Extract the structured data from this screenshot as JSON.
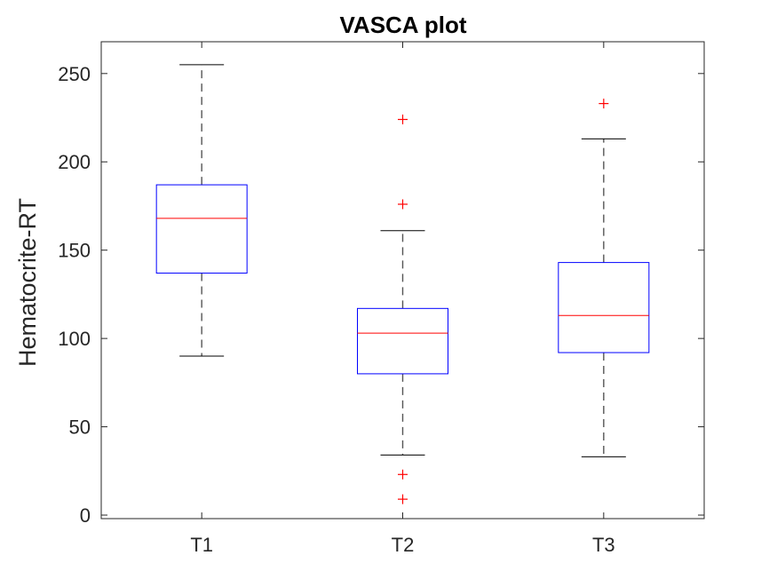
{
  "chart_data": {
    "type": "box",
    "title": "VASCA plot",
    "xlabel": "",
    "ylabel": "Hematocrite-RT",
    "categories": [
      "T1",
      "T2",
      "T3"
    ],
    "ylim": [
      -2,
      268
    ],
    "yticks": [
      0,
      50,
      100,
      150,
      200,
      250
    ],
    "ytick_labels": [
      "0",
      "50",
      "100",
      "150",
      "200",
      "250"
    ],
    "grid": false,
    "boxes": [
      {
        "category": "T1",
        "whisker_low": 90,
        "q1": 137,
        "median": 168,
        "q3": 187,
        "whisker_high": 255,
        "outliers": []
      },
      {
        "category": "T2",
        "whisker_low": 34,
        "q1": 80,
        "median": 103,
        "q3": 117,
        "whisker_high": 161,
        "outliers": [
          224,
          176,
          23,
          9
        ]
      },
      {
        "category": "T3",
        "whisker_low": 33,
        "q1": 92,
        "median": 113,
        "q3": 143,
        "whisker_high": 213,
        "outliers": [
          233
        ]
      }
    ],
    "colors": {
      "box": "#0000ff",
      "median": "#ff0000",
      "whisker": "#000000",
      "whisker_line": "#555555",
      "outlier": "#ff0000",
      "axes": "#262626"
    }
  }
}
